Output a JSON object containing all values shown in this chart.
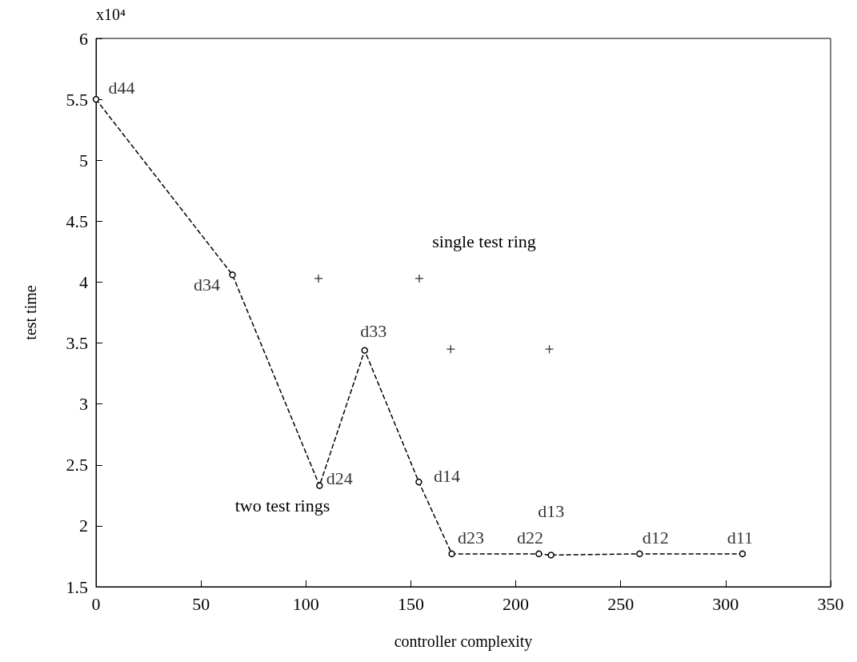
{
  "chart_data": {
    "type": "line",
    "xlabel": "controller complexity",
    "ylabel": "test time",
    "xlim": [
      0,
      350
    ],
    "xticks": [
      0,
      50,
      100,
      150,
      200,
      250,
      300,
      350
    ],
    "ylim": [
      1.5,
      6
    ],
    "yticks": [
      1.5,
      2,
      2.5,
      3,
      3.5,
      4,
      4.5,
      5,
      5.5,
      6
    ],
    "grid": false,
    "series": [
      {
        "color": "#000000",
        "marker": "circle",
        "line_style": "dashed",
        "x": [
          0,
          65,
          106.5,
          128,
          153.8,
          169.5,
          211,
          216.8,
          259,
          308
        ],
        "values": [
          5.5,
          4.06,
          2.33,
          3.44,
          2.36,
          1.77,
          1.77,
          1.76,
          1.77,
          1.77
        ]
      },
      {
        "type": "scatter",
        "color": "#000000",
        "marker": "cross",
        "x": [
          106,
          154,
          169,
          216
        ],
        "values": [
          4.03,
          4.03,
          3.45,
          3.45
        ]
      }
    ],
    "annotations": [
      "x10⁴",
      "single test ring",
      "two test rings",
      {
        "text": "d44",
        "x": 0,
        "y": 5.5
      },
      {
        "text": "d34",
        "x": 65,
        "y": 4.06
      },
      {
        "text": "d33",
        "x": 128,
        "y": 3.44
      },
      {
        "text": "d24",
        "x": 106.5,
        "y": 2.33
      },
      {
        "text": "d14",
        "x": 153.8,
        "y": 2.36
      },
      {
        "text": "d13",
        "x": 216.8,
        "y": 1.76
      },
      {
        "text": "d23",
        "x": 169.5,
        "y": 1.77
      },
      {
        "text": "d22",
        "x": 211,
        "y": 1.77
      },
      {
        "text": "d12",
        "x": 259,
        "y": 1.77
      },
      {
        "text": "d11",
        "x": 308,
        "y": 1.77
      }
    ]
  }
}
